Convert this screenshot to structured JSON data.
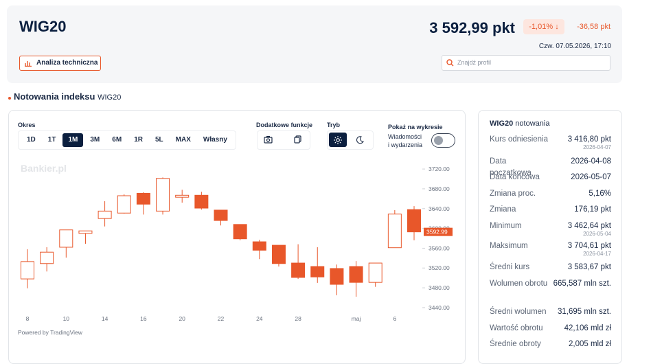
{
  "header": {
    "title": "WIG20",
    "price": "3 592,99 pkt",
    "change_pct": "-1,01%",
    "change_abs": "-36,58 pkt",
    "datetime": "Czw. 07.05.2026, 17:10",
    "analysis_button": "Analiza techniczna",
    "search_placeholder": "Znajdź profil"
  },
  "section": {
    "title": "Notowania indeksu",
    "ticker": "WIG20"
  },
  "controls": {
    "period_label": "Okres",
    "periods": [
      "1D",
      "1T",
      "1M",
      "3M",
      "6M",
      "1R",
      "5L",
      "MAX",
      "Własny"
    ],
    "active_period_index": 2,
    "extra_label": "Dodatkowe funkcje",
    "mode_label": "Tryb",
    "show_label": "Pokaż na wykresie",
    "news_toggle": "Wiadomości i wydarzenia"
  },
  "chart_data": {
    "type": "candlestick",
    "watermark": "Bankier.pl",
    "credit": "Powered by TradingView",
    "categories": [
      "8",
      null,
      "10",
      null,
      "14",
      null,
      "16",
      null,
      "20",
      null,
      "22",
      null,
      "24",
      null,
      "28",
      null,
      null,
      "maj",
      null,
      "6",
      null
    ],
    "open": [
      3498,
      3529,
      3562,
      3590,
      3620,
      3631,
      3671,
      3635,
      3663,
      3667,
      3637,
      3608,
      3573,
      3566,
      3530,
      3523,
      3519,
      3523,
      3491,
      3561,
      3638
    ],
    "high": [
      3558,
      3562,
      3597,
      3595,
      3655,
      3669,
      3673,
      3703,
      3678,
      3674,
      3637,
      3608,
      3577,
      3566,
      3568,
      3562,
      3527,
      3534,
      3530,
      3637,
      3645
    ],
    "low": [
      3479,
      3513,
      3541,
      3569,
      3604,
      3630,
      3628,
      3628,
      3652,
      3638,
      3606,
      3576,
      3538,
      3523,
      3498,
      3490,
      3465,
      3462,
      3482,
      3561,
      3576
    ],
    "close": [
      3533,
      3552,
      3597,
      3595,
      3635,
      3666,
      3649,
      3701,
      3667,
      3641,
      3616,
      3579,
      3556,
      3529,
      3501,
      3502,
      3487,
      3491,
      3530,
      3629,
      3592.99
    ],
    "last_label": "3592.99",
    "up_color": "#e8572a",
    "down_color": "#e8572a",
    "ylim": [
      3426,
      3734
    ],
    "yticks": [
      {
        "value": 3440,
        "label": "3440.00"
      },
      {
        "value": 3480,
        "label": "3480.00"
      },
      {
        "value": 3520,
        "label": "3520.00"
      },
      {
        "value": 3560,
        "label": "3560.00"
      },
      {
        "value": 3600,
        "label": "3600.00"
      },
      {
        "value": 3640,
        "label": "3640.00"
      },
      {
        "value": 3680,
        "label": "3680.00"
      },
      {
        "value": 3720,
        "label": "3720.00"
      }
    ],
    "grid": false
  },
  "quotes": {
    "ticker": "WIG20",
    "title": "notowania",
    "rows": [
      {
        "label": "Kurs odniesienia",
        "value": "3 416,80 pkt",
        "date": "2026-04-07"
      },
      {
        "label": "Data początkowa",
        "value": "2026-04-08"
      },
      {
        "label": "Data końcowa",
        "value": "2026-05-07"
      },
      {
        "label": "Zmiana proc.",
        "value": "5,16%"
      },
      {
        "label": "Zmiana",
        "value": "176,19 pkt"
      },
      {
        "label": "Minimum",
        "value": "3 462,64 pkt",
        "date": "2026-05-04"
      },
      {
        "label": "Maksimum",
        "value": "3 704,61 pkt",
        "date": "2026-04-17"
      },
      {
        "label": "Średni kurs",
        "value": "3 583,67 pkt"
      },
      {
        "label": "Wolumen obrotu",
        "value": "665,587 mln szt."
      },
      {
        "label": "Średni wolumen",
        "value": "31,695 mln szt."
      },
      {
        "label": "Wartość obrotu",
        "value": "42,106 mld zł"
      },
      {
        "label": "Średnie obroty",
        "value": "2,005 mld zł"
      }
    ]
  }
}
